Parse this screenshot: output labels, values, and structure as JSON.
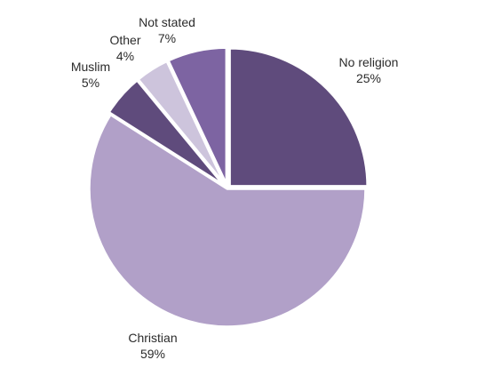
{
  "chart_data": {
    "type": "pie",
    "title": "",
    "categories": [
      "No religion",
      "Christian",
      "Muslim",
      "Other",
      "Not stated"
    ],
    "values": [
      25,
      59,
      5,
      4,
      7
    ],
    "percent_labels": [
      "25%",
      "59%",
      "5%",
      "4%",
      "7%"
    ],
    "colors": [
      "#5f4b7c",
      "#b1a0c8",
      "#5f4b7c",
      "#cdc4dc",
      "#7d64a2"
    ],
    "start_angle_deg": 0,
    "direction": "clockwise",
    "legend": "none",
    "labels_outside": true
  }
}
